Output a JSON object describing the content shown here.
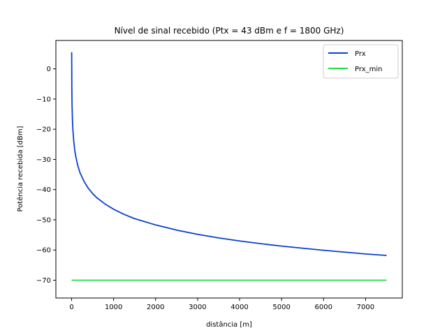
{
  "chart_data": {
    "type": "line",
    "title": "Nível de sinal recebido (Ptx = 43 dBm e f = 1800 GHz)",
    "xlabel": "distância [m]",
    "ylabel": "Potência recebida [dBm]",
    "xlim": [
      -375,
      7875
    ],
    "ylim": [
      -75.9,
      9.4
    ],
    "xticks": [
      0,
      1000,
      2000,
      3000,
      4000,
      5000,
      6000,
      7000
    ],
    "xtick_labels": [
      "0",
      "1000",
      "2000",
      "3000",
      "4000",
      "5000",
      "6000",
      "7000"
    ],
    "yticks": [
      0,
      -10,
      -20,
      -30,
      -40,
      -50,
      -60,
      -70
    ],
    "ytick_labels": [
      "0",
      "−10",
      "−20",
      "−30",
      "−40",
      "−50",
      "−60",
      "−70"
    ],
    "grid": false,
    "legend_position": "top-right",
    "series": [
      {
        "name": "Prx",
        "color": "#0a3fd1",
        "x": [
          1,
          5,
          10,
          20,
          30,
          50,
          75,
          100,
          150,
          200,
          300,
          400,
          500,
          600,
          800,
          1000,
          1250,
          1500,
          2000,
          2500,
          3000,
          3500,
          4000,
          4500,
          5000,
          5500,
          6000,
          6500,
          7000,
          7500
        ],
        "y": [
          5.5,
          -6.6,
          -11.8,
          -17.0,
          -20.0,
          -23.9,
          -27.0,
          -29.1,
          -32.2,
          -34.4,
          -37.4,
          -39.6,
          -41.3,
          -42.7,
          -44.8,
          -46.5,
          -48.2,
          -49.6,
          -51.7,
          -53.4,
          -54.8,
          -56.0,
          -57.0,
          -57.9,
          -58.7,
          -59.4,
          -60.1,
          -60.7,
          -61.3,
          -61.8
        ]
      },
      {
        "name": "Prx_min",
        "color": "#1fdc4a",
        "x": [
          0,
          7500
        ],
        "y": [
          -70,
          -70
        ]
      }
    ]
  }
}
